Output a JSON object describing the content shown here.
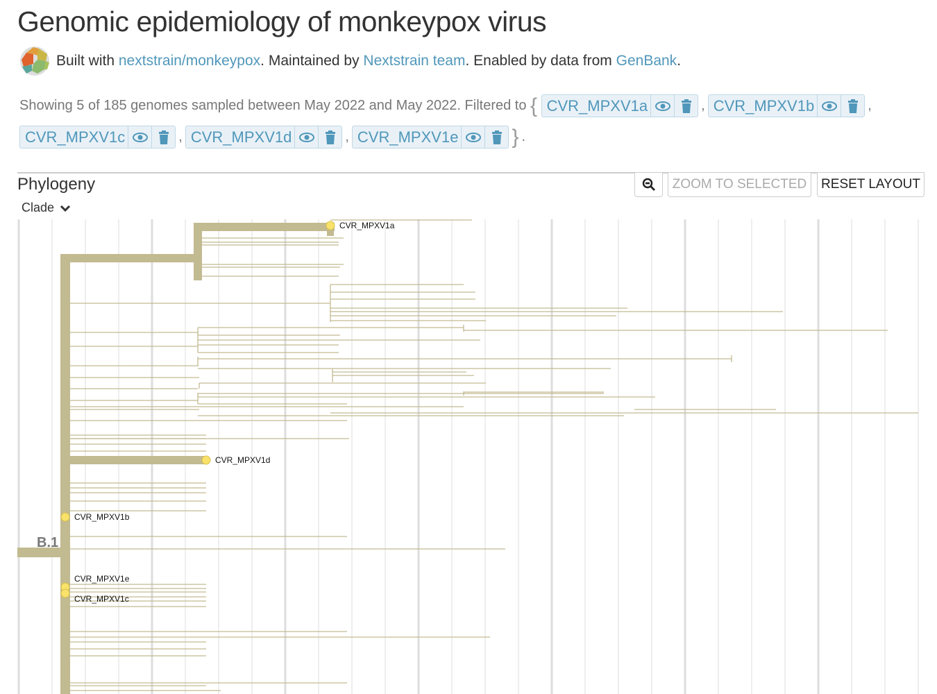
{
  "header": {
    "title": "Genomic epidemiology of monkeypox virus",
    "byline": {
      "t1": "Built with ",
      "link1": "nextstrain/monkeypox",
      "t2": ". Maintained by ",
      "link2": "Nextstrain team",
      "t3": ". Enabled by data from ",
      "link3": "GenBank",
      "t4": "."
    }
  },
  "filter": {
    "summary": "Showing 5 of 185 genomes sampled between May 2022 and May 2022. Filtered to",
    "open": "{",
    "close": "}",
    "end": ".",
    "sep": ",",
    "items": [
      {
        "label": "CVR_MPXV1a"
      },
      {
        "label": "CVR_MPXV1b"
      },
      {
        "label": "CVR_MPXV1c"
      },
      {
        "label": "CVR_MPXV1d"
      },
      {
        "label": "CVR_MPXV1e"
      }
    ]
  },
  "panel": {
    "title": "Phylogeny",
    "color_by": "Clade",
    "zoom_selected": "ZOOM TO SELECTED",
    "reset_layout": "RESET LAYOUT"
  },
  "tree": {
    "branch_color": "#C2BA90",
    "tip_color": "#F9E26B",
    "clade_label": "B.1",
    "tips": [
      "CVR_MPXV1a",
      "CVR_MPXV1d",
      "CVR_MPXV1b",
      "CVR_MPXV1e",
      "CVR_MPXV1c"
    ]
  },
  "colors": {
    "link": "#5097BA",
    "pill_bg": "#E9F1F7"
  }
}
